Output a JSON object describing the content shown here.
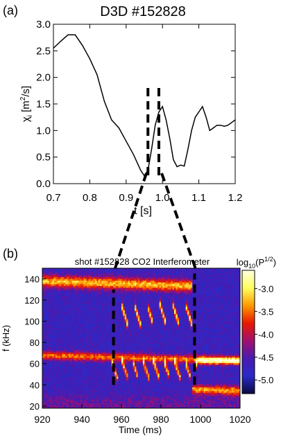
{
  "panel_a": {
    "panel_label": "(a)",
    "title": "D3D #152828",
    "ylabel_main": "χ",
    "ylabel_sub": "i",
    "ylabel_units": " [m",
    "ylabel_units_sup": "2",
    "ylabel_units_tail": "/s]",
    "xlabel": "t [s]"
  },
  "panel_b": {
    "panel_label": "(b)",
    "title": "shot #152828   CO2 Interferometer",
    "xlabel": "Time (ms)",
    "ylabel": "f (kHz)",
    "colorbar_label_pre": "log",
    "colorbar_label_sub": "10",
    "colorbar_label_mid": "(P",
    "colorbar_label_sup": "1/2",
    "colorbar_label_post": ")",
    "colorbar_ticks": [
      "-3.0",
      "-3.5",
      "-4.0",
      "-4.5",
      "-5.0"
    ],
    "colorbar_colors": [
      "#ffffe0",
      "#ffff60",
      "#ff9a00",
      "#e81800",
      "#a01070",
      "#4a1ab0",
      "#2a2ac8",
      "#0a0a40"
    ]
  },
  "chart_data": [
    {
      "type": "line",
      "title": "D3D #152828",
      "xlabel": "t [s]",
      "ylabel": "χi [m2/s]",
      "xlim": [
        0.7,
        1.2
      ],
      "ylim": [
        0.0,
        3.0
      ],
      "x_ticks": [
        0.7,
        0.8,
        0.9,
        1.0,
        1.1,
        1.2
      ],
      "y_ticks": [
        0.0,
        0.5,
        1.0,
        1.5,
        2.0,
        2.5,
        3.0
      ],
      "x_tick_labels": [
        "0.7",
        "0.8",
        "0.9",
        "1.0",
        "1.1",
        "1.2"
      ],
      "y_tick_labels": [
        "0.0",
        "0.5",
        "1.0",
        "1.5",
        "2.0",
        "2.5",
        "3.0"
      ],
      "line_color": "#000000",
      "x": [
        0.7,
        0.72,
        0.74,
        0.76,
        0.78,
        0.8,
        0.82,
        0.84,
        0.86,
        0.88,
        0.9,
        0.92,
        0.94,
        0.95,
        0.96,
        0.97,
        0.98,
        0.99,
        1.0,
        1.01,
        1.02,
        1.03,
        1.04,
        1.05,
        1.06,
        1.07,
        1.08,
        1.09,
        1.1,
        1.11,
        1.12,
        1.13,
        1.14,
        1.15,
        1.16,
        1.17,
        1.18,
        1.19,
        1.2
      ],
      "y": [
        2.55,
        2.68,
        2.8,
        2.8,
        2.6,
        2.35,
        2.05,
        1.55,
        1.2,
        1.05,
        0.8,
        0.55,
        0.25,
        0.15,
        0.25,
        0.65,
        1.1,
        1.35,
        1.45,
        1.2,
        0.85,
        0.45,
        0.32,
        0.35,
        0.33,
        0.65,
        1.0,
        1.25,
        1.35,
        1.45,
        1.25,
        1.0,
        1.05,
        1.1,
        1.1,
        1.08,
        1.1,
        1.15,
        1.2
      ],
      "annotations": [
        {
          "type": "dashed-line",
          "x": 0.96,
          "y_range": [
            0.15,
            1.8
          ]
        },
        {
          "type": "dashed-line",
          "x": 0.99,
          "y_range": [
            0.15,
            1.8
          ]
        }
      ]
    },
    {
      "type": "heatmap",
      "title": "shot #152828   CO2 Interferometer",
      "xlabel": "Time (ms)",
      "ylabel": "f (kHz)",
      "colorbar_label": "log10(P1/2)",
      "xlim": [
        920,
        1020
      ],
      "ylim": [
        18,
        150
      ],
      "clim": [
        -5.3,
        -2.6
      ],
      "x_ticks": [
        920,
        940,
        960,
        980,
        1000,
        1020
      ],
      "y_ticks": [
        20,
        40,
        60,
        80,
        100,
        120,
        140
      ],
      "x_tick_labels": [
        "920",
        "940",
        "960",
        "980",
        "1000",
        "1020"
      ],
      "y_tick_labels": [
        "20",
        "40",
        "60",
        "80",
        "100",
        "120",
        "140"
      ],
      "colorbar_ticks": [
        -3.0,
        -3.5,
        -4.0,
        -4.5,
        -5.0
      ],
      "features": [
        {
          "name": "upper mode band",
          "t_range": [
            920,
            995
          ],
          "f_range": [
            128,
            145
          ]
        },
        {
          "name": "mid chirping modes",
          "t_range": [
            960,
            995
          ],
          "f_range": [
            92,
            120
          ]
        },
        {
          "name": "lower mode band",
          "t_range": [
            920,
            1020
          ],
          "f_range": [
            50,
            72
          ]
        },
        {
          "name": "low frequency mode",
          "t_range": [
            995,
            1020
          ],
          "f_range": [
            30,
            42
          ]
        }
      ],
      "annotations": [
        {
          "type": "dashed-line",
          "from": [
            956,
            40
          ],
          "to": [
            956,
            130
          ]
        },
        {
          "type": "dashed-line",
          "from": [
            997,
            40
          ],
          "to": [
            997,
            145
          ]
        }
      ]
    }
  ]
}
